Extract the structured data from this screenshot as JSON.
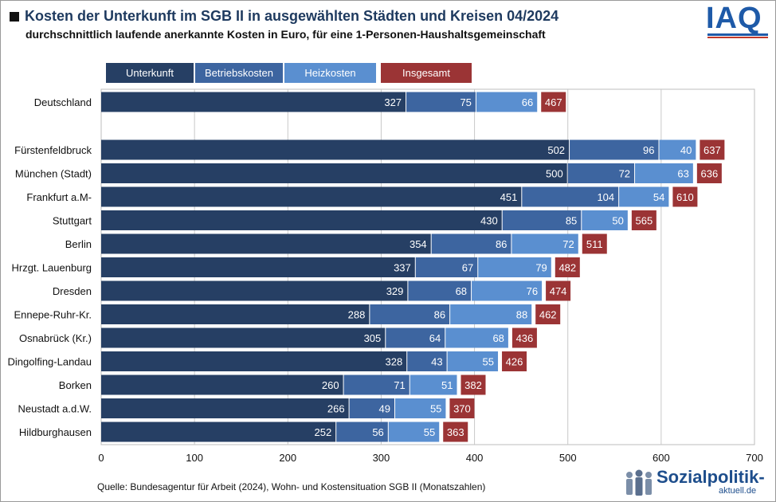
{
  "header": {
    "title": "Kosten der Unterkunft im SGB II in ausgewählten Städten und Kreisen 04/2024",
    "subtitle": "durchschnittlich laufende anerkannte Kosten in Euro, für eine 1-Personen-Haushaltsgemeinschaft",
    "logo_text": "IAQ"
  },
  "legend": [
    {
      "label": "Unterkunft",
      "color": "#263f64"
    },
    {
      "label": "Betriebskosten",
      "color": "#3d65a0"
    },
    {
      "label": "Heizkosten",
      "color": "#5a8fd0"
    },
    {
      "label": "Insgesamt",
      "color": "#9b3435"
    }
  ],
  "footer": {
    "source": "Quelle: Bundesagentur für Arbeit (2024), Wohn- und Kostensituation SGB II (Monatszahlen)",
    "badge_main": "Sozialpolitik-",
    "badge_sub": "aktuell.de"
  },
  "chart_data": {
    "type": "bar",
    "orientation": "horizontal",
    "stacked": true,
    "xlim": [
      0,
      700
    ],
    "x_ticks": [
      0,
      100,
      200,
      300,
      400,
      500,
      600,
      700
    ],
    "grid": true,
    "categories": [
      "Deutschland",
      "Fürstenfeldbruck",
      "München (Stadt)",
      "Frankfurt a.M-",
      "Stuttgart",
      "Berlin",
      "Hrzgt. Lauenburg",
      "Dresden",
      "Ennepe-Ruhr-Kr.",
      "Osnabrück (Kr.)",
      "Dingolfing-Landau",
      "Borken",
      "Neustadt a.d.W.",
      "Hildburghausen"
    ],
    "series": [
      {
        "name": "Unterkunft",
        "color": "#263f64",
        "values": [
          327,
          502,
          500,
          451,
          430,
          354,
          337,
          329,
          288,
          305,
          328,
          260,
          266,
          252
        ]
      },
      {
        "name": "Betriebskosten",
        "color": "#3d65a0",
        "values": [
          75,
          96,
          72,
          104,
          85,
          86,
          67,
          68,
          86,
          64,
          43,
          71,
          49,
          56
        ]
      },
      {
        "name": "Heizkosten",
        "color": "#5a8fd0",
        "values": [
          66,
          40,
          63,
          54,
          50,
          72,
          79,
          76,
          88,
          68,
          55,
          51,
          55,
          55
        ]
      }
    ],
    "totals": {
      "name": "Insgesamt",
      "color": "#9b3435",
      "values": [
        467,
        637,
        636,
        610,
        565,
        511,
        482,
        474,
        462,
        436,
        426,
        382,
        370,
        363
      ]
    }
  }
}
